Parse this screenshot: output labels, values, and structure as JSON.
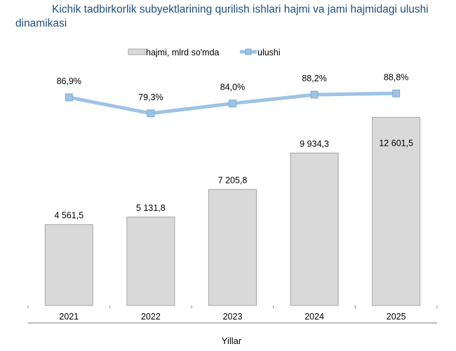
{
  "chart_data": {
    "type": "bar",
    "title": "Kichik tadbirkorlik subyektlarining qurilish ishlari hajmi va jami hajmidagi ulushi dinamikasi",
    "xlabel": "Yillar",
    "categories": [
      "2021",
      "2022",
      "2023",
      "2024",
      "2025"
    ],
    "series": [
      {
        "name": "hajmi, mlrd so'mda",
        "type": "bar",
        "values": [
          4561.5,
          5131.8,
          7205.8,
          9934.3,
          12601.5
        ],
        "labels": [
          "4 561,5",
          "5 131,8",
          "7 205,8",
          "9 934,3",
          "12 601,5"
        ],
        "color": "#d9d9d9"
      },
      {
        "name": "ulushi",
        "type": "line",
        "values": [
          86.9,
          79.3,
          84.0,
          88.2,
          88.8
        ],
        "labels": [
          "86,9%",
          "79,3%",
          "84,0%",
          "88,2%",
          "88,8%"
        ],
        "color": "#9dc3e6"
      }
    ],
    "legend": "top",
    "grid": false
  }
}
